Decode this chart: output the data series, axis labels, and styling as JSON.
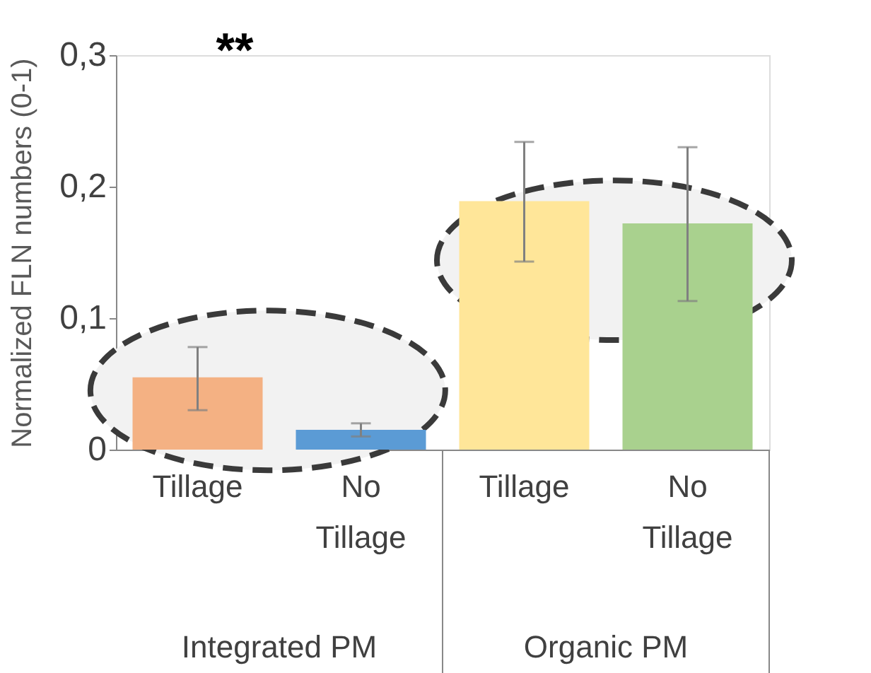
{
  "chart_data": {
    "type": "bar",
    "ylabel": "Normalized FLN numbers (0-1)",
    "categories": [
      "Tillage",
      "No Tillage",
      "Tillage",
      "No Tillage"
    ],
    "values": [
      0.055,
      0.015,
      0.189,
      0.172
    ],
    "colors": [
      "#f4b183",
      "#5b9bd5",
      "#ffe699",
      "#a9d18e"
    ],
    "errors": [
      [
        0.03,
        0.078
      ],
      [
        0.01,
        0.02
      ],
      [
        0.143,
        0.234
      ],
      [
        0.113,
        0.23
      ]
    ],
    "ylim": [
      0,
      0.3
    ],
    "yticks": [
      0,
      {
        "value": 0.1,
        "label": "0,1"
      },
      {
        "value": 0.2,
        "label": "0,2"
      },
      {
        "value": 0.3,
        "label": "0,3"
      }
    ],
    "grid": false,
    "annotations": [
      "Integrated PM",
      "Organic PM",
      "**"
    ]
  }
}
